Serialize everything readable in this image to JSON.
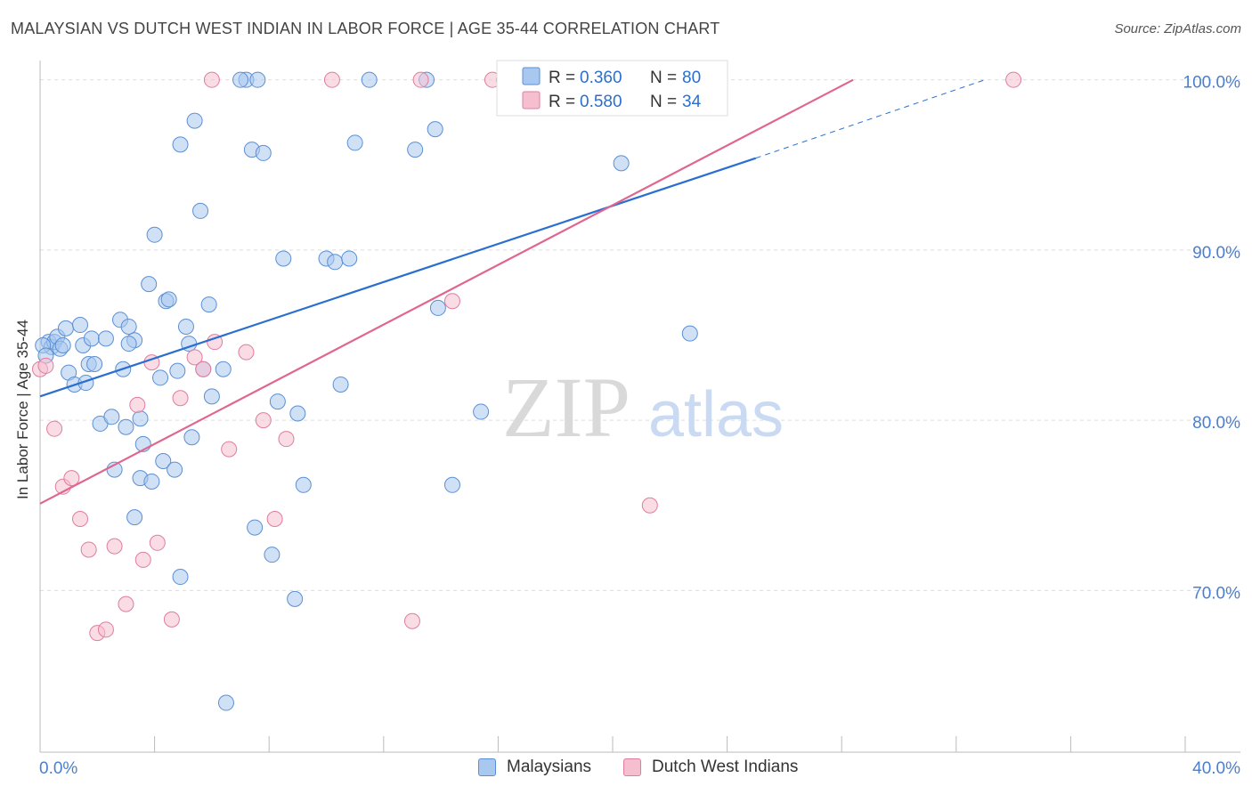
{
  "title": "MALAYSIAN VS DUTCH WEST INDIAN IN LABOR FORCE | AGE 35-44 CORRELATION CHART",
  "source": "Source: ZipAtlas.com",
  "watermark": {
    "zip": "ZIP",
    "atlas": "atlas"
  },
  "colors": {
    "blue_fill": "#a9c8ef",
    "blue_stroke": "#5b8fd4",
    "blue_line": "#2a6fd0",
    "pink_fill": "#f6bfd0",
    "pink_stroke": "#e07d9e",
    "pink_line": "#e06690",
    "axis_text": "#4a7fcf",
    "grid": "#dddddd"
  },
  "legend_top": [
    {
      "r_label": "R = ",
      "r_value": "0.360",
      "n_label": "N = ",
      "n_value": "80"
    },
    {
      "r_label": "R = ",
      "r_value": "0.580",
      "n_label": "N = ",
      "n_value": "34"
    }
  ],
  "legend_bottom": [
    "Malaysians",
    "Dutch West Indians"
  ],
  "chart_data": {
    "type": "scatter",
    "title": "MALAYSIAN VS DUTCH WEST INDIAN IN LABOR FORCE | AGE 35-44 CORRELATION CHART",
    "xlabel": "",
    "ylabel": "In Labor Force | Age 35-44",
    "xlim": [
      0,
      40
    ],
    "ylim": [
      60.5,
      101.5
    ],
    "x_tick_labels": [
      "0.0%",
      "40.0%"
    ],
    "y_ticks": [
      70,
      80,
      90,
      100
    ],
    "y_tick_labels": [
      "70.0%",
      "80.0%",
      "90.0%",
      "100.0%"
    ],
    "series": [
      {
        "name": "Malaysians",
        "R": 0.36,
        "N": 80,
        "trend": {
          "x0": 0,
          "y0": 81.4,
          "x1": 25,
          "y1": 95.4,
          "dash_to_x": 33,
          "dash_to_y": 100
        },
        "points": [
          [
            0.3,
            84.6
          ],
          [
            0.4,
            84.3
          ],
          [
            0.5,
            84.6
          ],
          [
            0.6,
            84.9
          ],
          [
            0.7,
            84.2
          ],
          [
            0.8,
            84.4
          ],
          [
            0.9,
            85.4
          ],
          [
            1.0,
            82.8
          ],
          [
            1.2,
            82.1
          ],
          [
            1.4,
            85.6
          ],
          [
            1.5,
            84.4
          ],
          [
            1.6,
            82.2
          ],
          [
            1.7,
            83.3
          ],
          [
            1.8,
            84.8
          ],
          [
            1.9,
            83.3
          ],
          [
            2.1,
            79.8
          ],
          [
            2.3,
            84.8
          ],
          [
            2.5,
            80.2
          ],
          [
            2.6,
            77.1
          ],
          [
            2.8,
            85.9
          ],
          [
            2.9,
            83.0
          ],
          [
            3.0,
            79.6
          ],
          [
            3.1,
            85.5
          ],
          [
            3.3,
            74.3
          ],
          [
            3.3,
            84.7
          ],
          [
            3.5,
            76.6
          ],
          [
            3.5,
            80.1
          ],
          [
            3.6,
            78.6
          ],
          [
            3.8,
            88.0
          ],
          [
            3.9,
            76.4
          ],
          [
            4.0,
            90.9
          ],
          [
            4.2,
            82.5
          ],
          [
            4.3,
            77.6
          ],
          [
            4.4,
            87.0
          ],
          [
            4.5,
            87.1
          ],
          [
            4.7,
            77.1
          ],
          [
            4.8,
            82.9
          ],
          [
            4.9,
            96.2
          ],
          [
            4.9,
            70.8
          ],
          [
            5.1,
            85.5
          ],
          [
            5.2,
            84.5
          ],
          [
            5.3,
            79.0
          ],
          [
            5.4,
            97.6
          ],
          [
            5.6,
            92.3
          ],
          [
            5.7,
            83.0
          ],
          [
            5.9,
            86.8
          ],
          [
            6.0,
            81.4
          ],
          [
            6.4,
            83.0
          ],
          [
            6.5,
            63.4
          ],
          [
            7.2,
            100.0
          ],
          [
            7.6,
            100.0
          ],
          [
            7.4,
            95.9
          ],
          [
            7.5,
            73.7
          ],
          [
            7.8,
            95.7
          ],
          [
            8.3,
            81.1
          ],
          [
            8.1,
            72.1
          ],
          [
            8.5,
            89.5
          ],
          [
            8.9,
            69.5
          ],
          [
            9.0,
            80.4
          ],
          [
            9.2,
            76.2
          ],
          [
            10.0,
            89.5
          ],
          [
            10.3,
            89.3
          ],
          [
            10.5,
            82.1
          ],
          [
            10.8,
            89.5
          ],
          [
            11.0,
            96.3
          ],
          [
            11.5,
            100.0
          ],
          [
            13.1,
            95.9
          ],
          [
            13.5,
            100.0
          ],
          [
            13.8,
            97.1
          ],
          [
            13.9,
            86.6
          ],
          [
            14.4,
            76.2
          ],
          [
            15.4,
            80.5
          ],
          [
            16.2,
            100.0
          ],
          [
            17.6,
            100.0
          ],
          [
            20.3,
            95.1
          ],
          [
            22.7,
            85.1
          ],
          [
            0.1,
            84.4
          ],
          [
            0.2,
            83.8
          ],
          [
            3.1,
            84.5
          ],
          [
            7.0,
            100.0
          ]
        ]
      },
      {
        "name": "Dutch West Indians",
        "R": 0.58,
        "N": 34,
        "trend": {
          "x0": 0,
          "y0": 75.1,
          "x1": 28.4,
          "y1": 100.0
        },
        "points": [
          [
            0.0,
            83.0
          ],
          [
            0.5,
            79.5
          ],
          [
            0.8,
            76.1
          ],
          [
            1.1,
            76.6
          ],
          [
            1.4,
            74.2
          ],
          [
            1.7,
            72.4
          ],
          [
            2.0,
            67.5
          ],
          [
            2.3,
            67.7
          ],
          [
            2.6,
            72.6
          ],
          [
            3.0,
            69.2
          ],
          [
            3.4,
            80.9
          ],
          [
            3.6,
            71.8
          ],
          [
            3.9,
            83.4
          ],
          [
            4.1,
            72.8
          ],
          [
            4.6,
            68.3
          ],
          [
            4.9,
            81.3
          ],
          [
            5.4,
            83.7
          ],
          [
            5.7,
            83.0
          ],
          [
            6.1,
            84.6
          ],
          [
            6.6,
            78.3
          ],
          [
            7.2,
            84.0
          ],
          [
            7.8,
            80.0
          ],
          [
            8.2,
            74.2
          ],
          [
            8.6,
            78.9
          ],
          [
            6.0,
            100.0
          ],
          [
            10.2,
            100.0
          ],
          [
            13.3,
            100.0
          ],
          [
            14.4,
            87.0
          ],
          [
            15.8,
            100.0
          ],
          [
            13.0,
            68.2
          ],
          [
            21.3,
            75.0
          ],
          [
            34.0,
            100.0
          ],
          [
            16.3,
            100.0
          ],
          [
            0.2,
            83.2
          ]
        ]
      }
    ]
  }
}
